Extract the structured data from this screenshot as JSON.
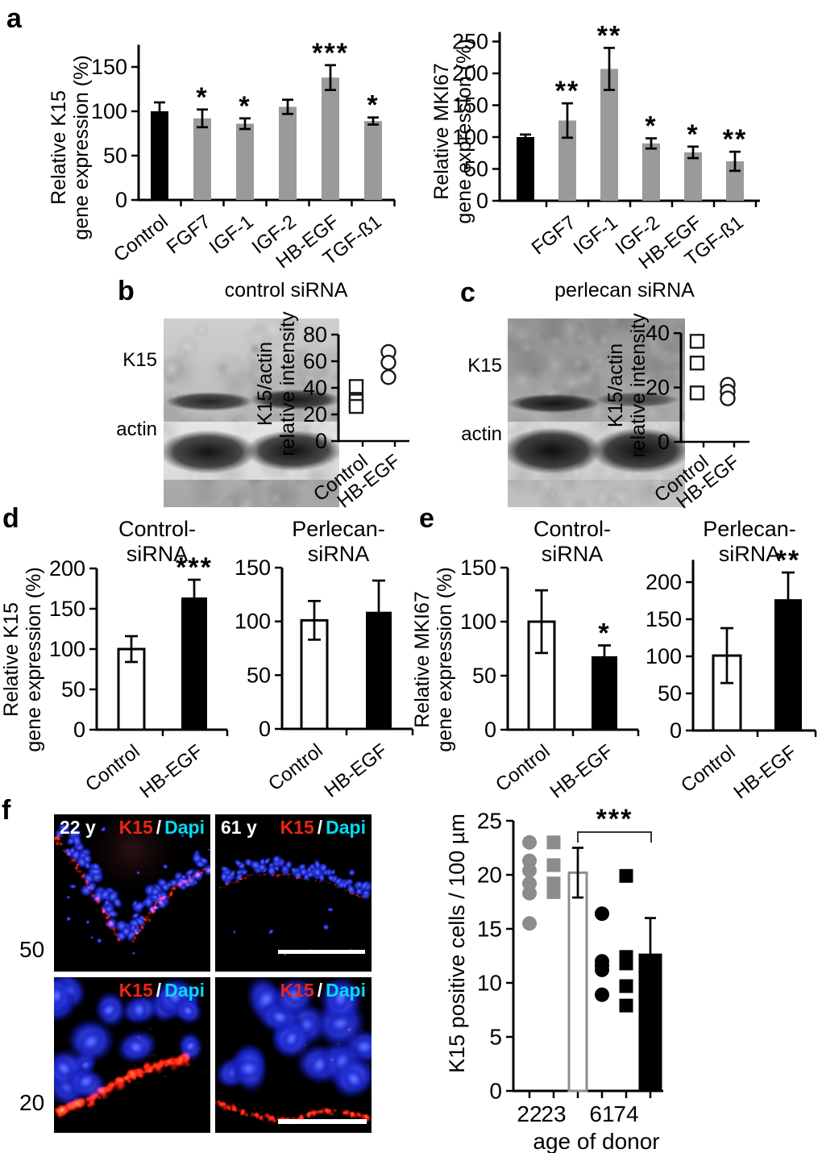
{
  "figure": {
    "panels": {
      "a": {
        "letter": "a"
      },
      "b": {
        "letter": "b",
        "title": "control siRNA",
        "blot_rows": [
          "K15",
          "actin"
        ]
      },
      "c": {
        "letter": "c",
        "title": "perlecan siRNA",
        "blot_rows": [
          "K15",
          "actin"
        ]
      },
      "d": {
        "letter": "d"
      },
      "e": {
        "letter": "e"
      },
      "f": {
        "letter": "f",
        "images": [
          {
            "age": "22 y",
            "red": "K15",
            "sep": "/",
            "blue": "Dapi"
          },
          {
            "age": "61 y",
            "red": "K15",
            "sep": "/",
            "blue": "Dapi"
          },
          {
            "age": "",
            "red": "K15",
            "sep": "/",
            "blue": "Dapi"
          },
          {
            "age": "",
            "red": "K15",
            "sep": "/",
            "blue": "Dapi"
          }
        ],
        "scale_values": [
          "50",
          "20"
        ]
      }
    },
    "colors": {
      "bar_gray": "#9a9a9a",
      "bar_black": "#000000",
      "marker_gray": "#8c8c8c",
      "k15_red": "#ee2415",
      "dapi_cyan": "#00dcf5",
      "nuclei_blue": "#2233dd"
    }
  },
  "chart_data": [
    {
      "id": "a-k15",
      "type": "bar",
      "ylabel": [
        "Relative K15",
        "gene expression (%)"
      ],
      "ylim": [
        0,
        175
      ],
      "yticks": [
        0,
        50,
        100,
        150
      ],
      "categories": [
        "Control",
        "FGF7",
        "IGF-1",
        "IGF-2",
        "HB-EGF",
        "TGF-ß1"
      ],
      "values": [
        100,
        92,
        86,
        105,
        138,
        89
      ],
      "errors": [
        10,
        10,
        6,
        8,
        14,
        4
      ],
      "significance": [
        "",
        "*",
        "*",
        "",
        "***",
        "*"
      ],
      "bar_colors": [
        "black",
        "gray",
        "gray",
        "gray",
        "gray",
        "gray"
      ]
    },
    {
      "id": "a-mki67",
      "type": "bar",
      "ylabel": [
        "Relative MKI67",
        "gene expression (%)"
      ],
      "ylim": [
        0,
        265
      ],
      "yticks": [
        0,
        50,
        100,
        150,
        200,
        250
      ],
      "categories": [
        "",
        "FGF7",
        "IGF-1",
        "IGF-2",
        "HB-EGF",
        "TGF-ß1"
      ],
      "values": [
        100,
        126,
        207,
        90,
        76,
        62
      ],
      "errors": [
        4,
        27,
        33,
        8,
        9,
        15
      ],
      "significance": [
        "",
        "**",
        "**",
        "*",
        "*",
        "**"
      ],
      "bar_colors": [
        "black",
        "gray",
        "gray",
        "gray",
        "gray",
        "gray"
      ]
    },
    {
      "id": "b-dot",
      "type": "scatter",
      "ylabel": [
        "K15/actin",
        "relative intensity"
      ],
      "ylim": [
        0,
        80
      ],
      "yticks": [
        0,
        20,
        40,
        60,
        80
      ],
      "categories": [
        "Control",
        "HB-EGF"
      ],
      "series": [
        {
          "name": "Control",
          "marker": "square",
          "values": [
            41,
            30,
            26
          ]
        },
        {
          "name": "HB-EGF",
          "marker": "circle",
          "values": [
            67,
            59,
            48
          ]
        }
      ]
    },
    {
      "id": "c-dot",
      "type": "scatter",
      "ylabel": [
        "K15/actin",
        "relative intensity"
      ],
      "ylim": [
        0,
        40
      ],
      "yticks": [
        0,
        20,
        40
      ],
      "categories": [
        "Control",
        "HB-EGF"
      ],
      "series": [
        {
          "name": "Control",
          "marker": "square",
          "values": [
            37,
            29,
            18
          ]
        },
        {
          "name": "HB-EGF",
          "marker": "circle",
          "values": [
            21,
            18.5,
            16
          ]
        }
      ]
    },
    {
      "id": "d-control",
      "type": "bar",
      "title": [
        "Control-",
        "siRNA"
      ],
      "ylabel": [
        "Relative K15",
        "gene expression (%)"
      ],
      "ylim": [
        0,
        200
      ],
      "yticks": [
        0,
        50,
        100,
        150,
        200
      ],
      "categories": [
        "Control",
        "HB-EGF"
      ],
      "values": [
        100,
        164
      ],
      "errors": [
        16,
        22
      ],
      "significance": [
        "",
        "***"
      ],
      "bar_colors": [
        "white",
        "black"
      ]
    },
    {
      "id": "d-perlecan",
      "type": "bar",
      "title": [
        "Perlecan-",
        "siRNA"
      ],
      "ylabel": [],
      "ylim": [
        0,
        150
      ],
      "yticks": [
        0,
        50,
        100,
        150
      ],
      "categories": [
        "Control",
        "HB-EGF"
      ],
      "values": [
        101,
        109
      ],
      "errors": [
        18,
        29
      ],
      "significance": [
        "",
        ""
      ],
      "bar_colors": [
        "white",
        "black"
      ]
    },
    {
      "id": "e-control",
      "type": "bar",
      "title": [
        "Control-",
        "siRNA"
      ],
      "ylabel": [
        "Relative MKI67",
        "gene expression (%)"
      ],
      "ylim": [
        0,
        150
      ],
      "yticks": [
        0,
        50,
        100,
        150
      ],
      "categories": [
        "Control",
        "HB-EGF"
      ],
      "values": [
        100,
        68
      ],
      "errors": [
        29,
        10
      ],
      "significance": [
        "",
        "*"
      ],
      "bar_colors": [
        "white",
        "black"
      ]
    },
    {
      "id": "e-perlecan",
      "type": "bar",
      "title": [
        "Perlecan-",
        "siRNA"
      ],
      "ylabel": [],
      "ylim": [
        0,
        230
      ],
      "yticks": [
        0,
        50,
        100,
        150,
        200
      ],
      "categories": [
        "Control",
        "HB-EGF"
      ],
      "values": [
        101,
        177
      ],
      "errors": [
        37,
        36
      ],
      "significance": [
        "",
        "**"
      ],
      "bar_colors": [
        "white",
        "black"
      ]
    },
    {
      "id": "f-age",
      "type": "scatter-bar",
      "ylabel": [
        "K15 positive cells / 100 µm"
      ],
      "xlabel": "age of donor",
      "ylim": [
        0,
        25
      ],
      "yticks": [
        0,
        5,
        10,
        15,
        20,
        25
      ],
      "xticklabels": [
        "22",
        "23",
        "",
        "61",
        "74",
        ""
      ],
      "groups": [
        {
          "age": "22",
          "marker": "circle",
          "color": "#8c8c8c",
          "values": [
            23,
            21.3,
            20.4,
            19.2,
            18.3,
            15.5
          ]
        },
        {
          "age": "23",
          "marker": "square",
          "color": "#8c8c8c",
          "values": [
            23,
            20.9,
            19.2,
            18.4
          ]
        },
        {
          "age": "61",
          "marker": "circle",
          "color": "#000000",
          "values": [
            16.4,
            12,
            11.6,
            11.2,
            8.9
          ]
        },
        {
          "age": "74",
          "marker": "square",
          "color": "#000000",
          "values": [
            19.9,
            12.4,
            11.8,
            9.7,
            7.9
          ]
        }
      ],
      "bars": [
        {
          "name": "young-mean",
          "value": 20.2,
          "error": 2.3,
          "fill": "#ffffff",
          "stroke": "#8c8c8c"
        },
        {
          "name": "old-mean",
          "value": 12.6,
          "error": 3.4,
          "fill": "#000000",
          "stroke": "#000000"
        }
      ],
      "significance": {
        "label": "***",
        "between": [
          "young-mean",
          "old-mean"
        ]
      }
    }
  ]
}
